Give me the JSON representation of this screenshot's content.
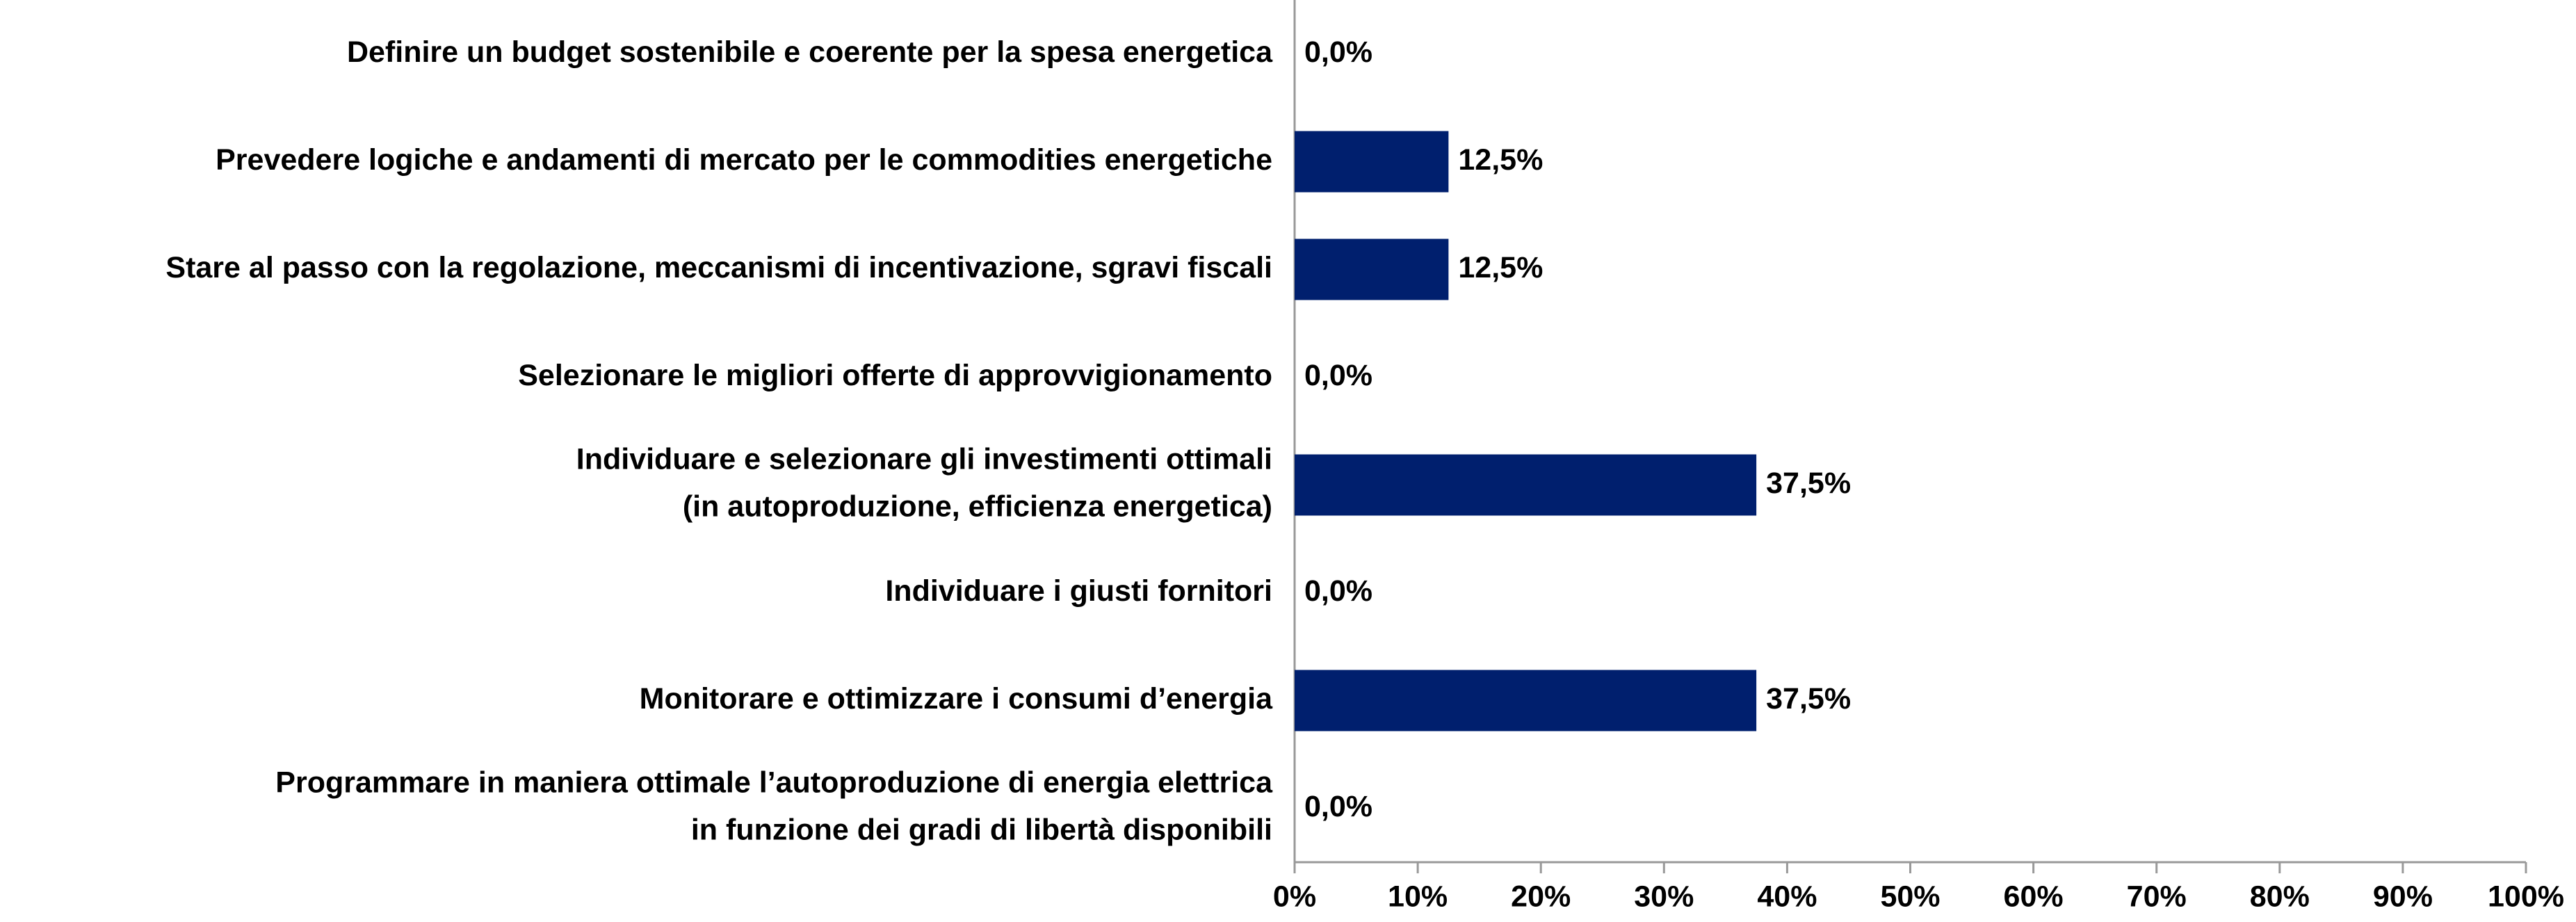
{
  "chart_data": {
    "type": "bar",
    "orientation": "horizontal",
    "categories": [
      "Definire un budget sostenibile e coerente per la spesa energetica",
      "Prevedere logiche e andamenti di mercato per le commodities energetiche",
      "Stare al passo con la regolazione, meccanismi di incentivazione, sgravi fiscali",
      "Selezionare le migliori offerte di approvvigionamento",
      "Individuare e selezionare gli investimenti ottimali\n(in autoproduzione, efficienza energetica)",
      "Individuare i giusti fornitori",
      "Monitorare e ottimizzare i consumi d’energia",
      "Programmare in maniera ottimale l’autoproduzione di energia elettrica\nin funzione dei gradi di libertà disponibili"
    ],
    "values": [
      0,
      12.5,
      12.5,
      0,
      37.5,
      0,
      37.5,
      0
    ],
    "value_labels": [
      "0,0%",
      "12,5%",
      "12,5%",
      "0,0%",
      "37,5%",
      "0,0%",
      "37,5%",
      "0,0%"
    ],
    "color": "#001f6e",
    "xlim": [
      0,
      100
    ],
    "xticks": [
      {
        "value": 0,
        "label": "0%"
      },
      {
        "value": 10,
        "label": "10%"
      },
      {
        "value": 20,
        "label": "20%"
      },
      {
        "value": 30,
        "label": "30%"
      },
      {
        "value": 40,
        "label": "40%"
      },
      {
        "value": 50,
        "label": "50%"
      },
      {
        "value": 60,
        "label": "60%"
      },
      {
        "value": 70,
        "label": "70%"
      },
      {
        "value": 80,
        "label": "80%"
      },
      {
        "value": 90,
        "label": "90%"
      },
      {
        "value": 100,
        "label": "100%"
      }
    ],
    "grid": false
  }
}
